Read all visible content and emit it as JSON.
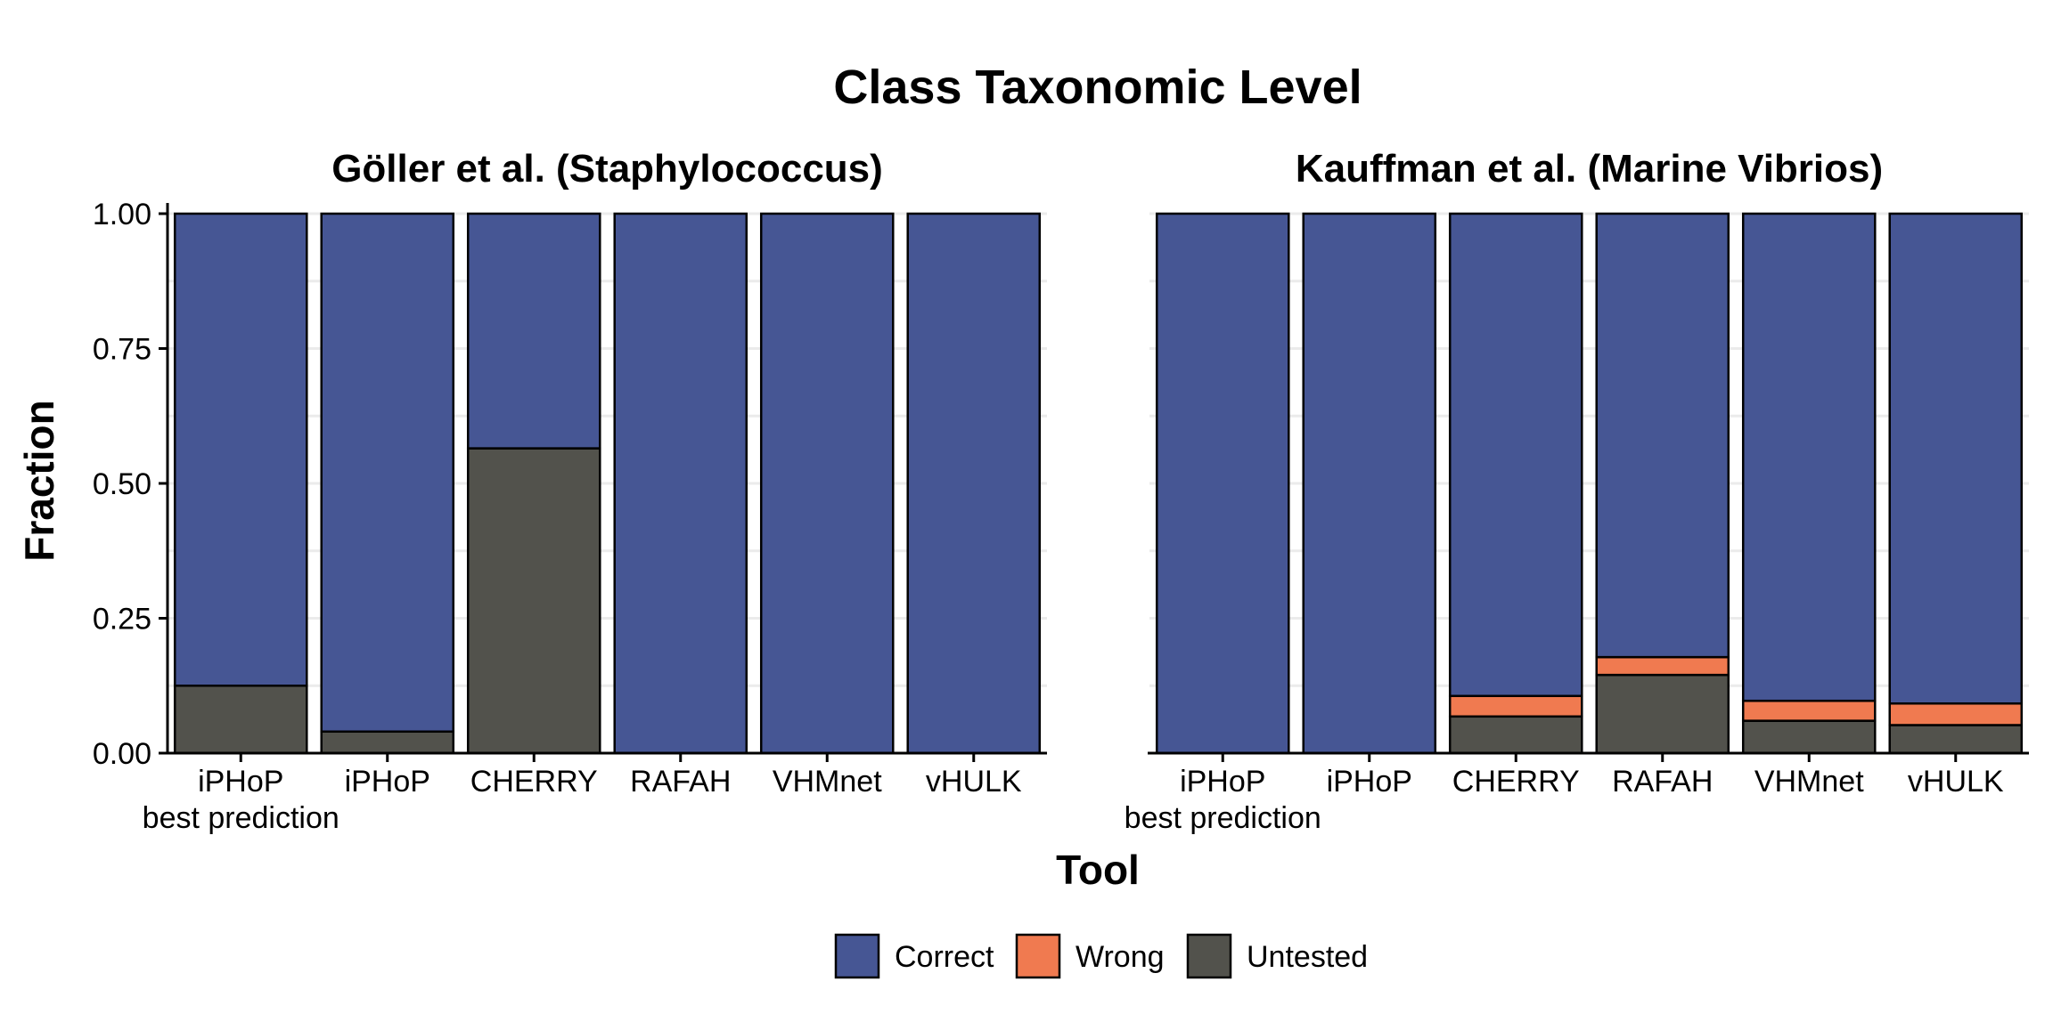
{
  "chart_data": {
    "type": "bar",
    "stacked": true,
    "title": "Class Taxonomic Level",
    "xlabel": "Tool",
    "ylabel": "Fraction",
    "ylim": [
      0,
      1
    ],
    "y_ticks": [
      "0.00",
      "0.25",
      "0.50",
      "0.75",
      "1.00"
    ],
    "grid": true,
    "legend_position": "bottom",
    "series_colors": {
      "Correct": "#465694",
      "Wrong": "#f07a50",
      "Untested": "#52524c"
    },
    "legend": [
      "Correct",
      "Wrong",
      "Untested"
    ],
    "panels": [
      {
        "title": "Göller et al. (Staphylococcus)",
        "categories": [
          [
            "iPHoP",
            "best prediction"
          ],
          [
            "iPHoP"
          ],
          [
            "CHERRY"
          ],
          [
            "RAFAH"
          ],
          [
            "VHMnet"
          ],
          [
            "vHULK"
          ]
        ],
        "series": [
          {
            "name": "Untested",
            "values": [
              0.125,
              0.04,
              0.565,
              0,
              0,
              0
            ]
          },
          {
            "name": "Wrong",
            "values": [
              0,
              0,
              0,
              0,
              0,
              0
            ]
          },
          {
            "name": "Correct",
            "values": [
              0.875,
              0.96,
              0.435,
              1,
              1,
              1
            ]
          }
        ]
      },
      {
        "title": "Kauffman et al. (Marine Vibrios)",
        "categories": [
          [
            "iPHoP",
            "best prediction"
          ],
          [
            "iPHoP"
          ],
          [
            "CHERRY"
          ],
          [
            "RAFAH"
          ],
          [
            "VHMnet"
          ],
          [
            "vHULK"
          ]
        ],
        "series": [
          {
            "name": "Untested",
            "values": [
              0,
              0,
              0.068,
              0.145,
              0.06,
              0.052
            ]
          },
          {
            "name": "Wrong",
            "values": [
              0,
              0,
              0.038,
              0.033,
              0.037,
              0.04
            ]
          },
          {
            "name": "Correct",
            "values": [
              1,
              1,
              0.894,
              0.822,
              0.903,
              0.908
            ]
          }
        ]
      }
    ]
  }
}
